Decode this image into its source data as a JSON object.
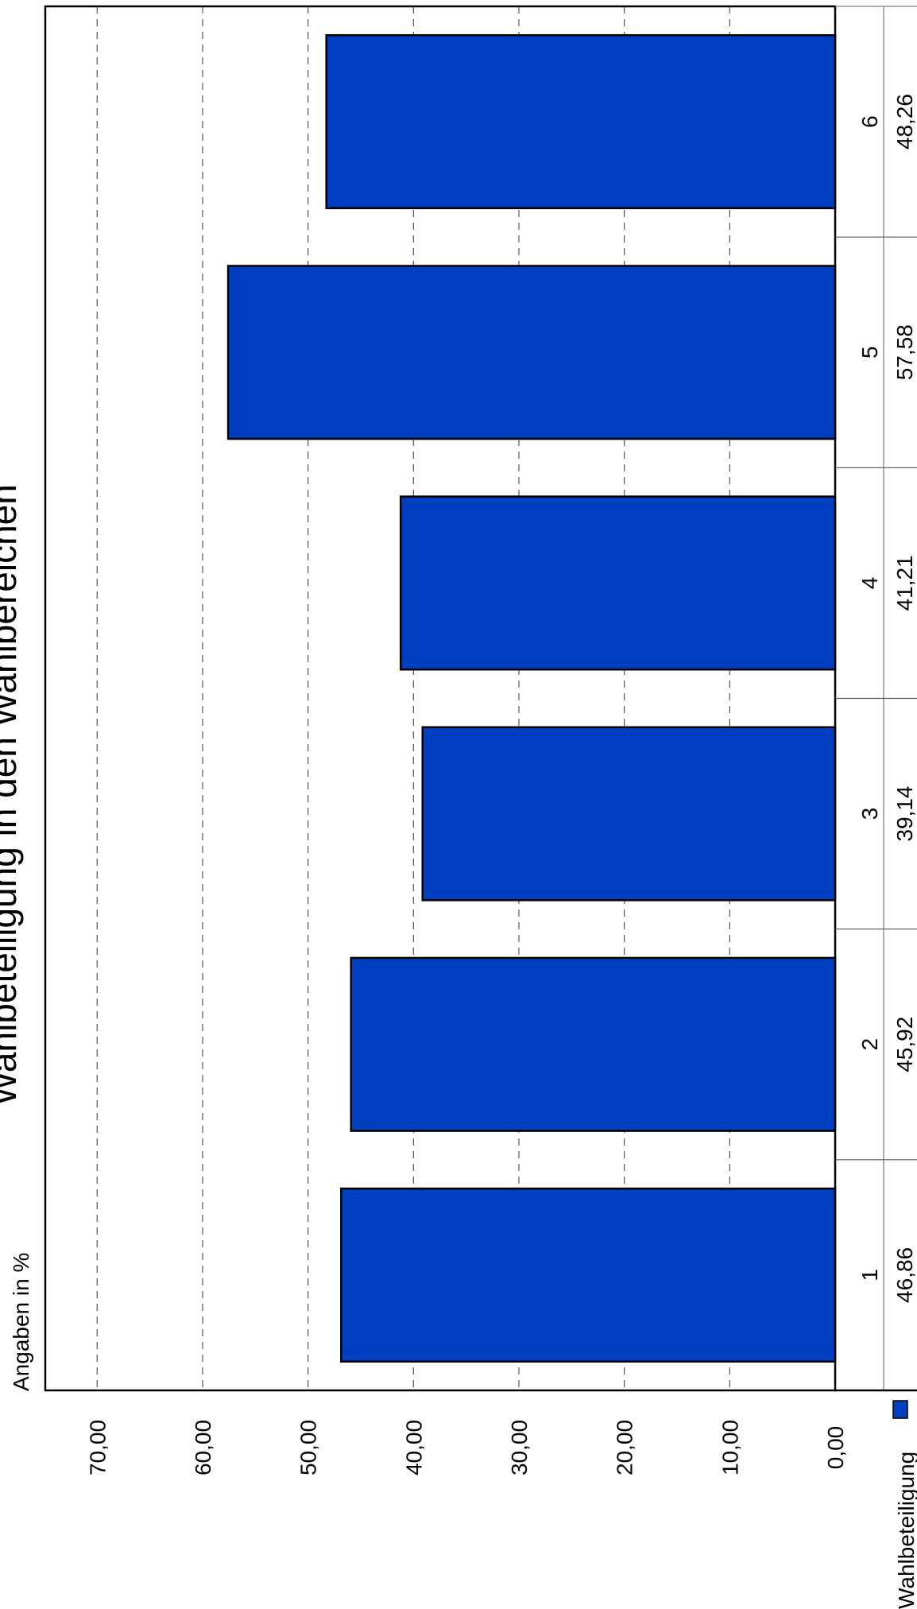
{
  "chart_data": {
    "type": "bar",
    "orientation": "rotated-90",
    "title": "Wahlbeteiligung in den Wahlbereichen",
    "ylabel": "Angaben in %",
    "categories": [
      "1",
      "2",
      "3",
      "4",
      "5",
      "6"
    ],
    "series": [
      {
        "name": "Wahlbeteiligung",
        "values": [
          46.86,
          45.92,
          39.14,
          41.21,
          57.58,
          48.26
        ],
        "value_labels": [
          "46,86",
          "45,92",
          "39,14",
          "41,21",
          "57,58",
          "48,26"
        ],
        "color": "#0040C0"
      }
    ],
    "ylim": [
      0,
      75
    ],
    "y_ticks": [
      0,
      10,
      20,
      30,
      40,
      50,
      60,
      70
    ],
    "y_tick_labels": [
      "0,00",
      "10,00",
      "20,00",
      "30,00",
      "40,00",
      "50,00",
      "60,00",
      "70,00"
    ],
    "grid": true,
    "legend": "bottom-left",
    "data_table": true
  }
}
